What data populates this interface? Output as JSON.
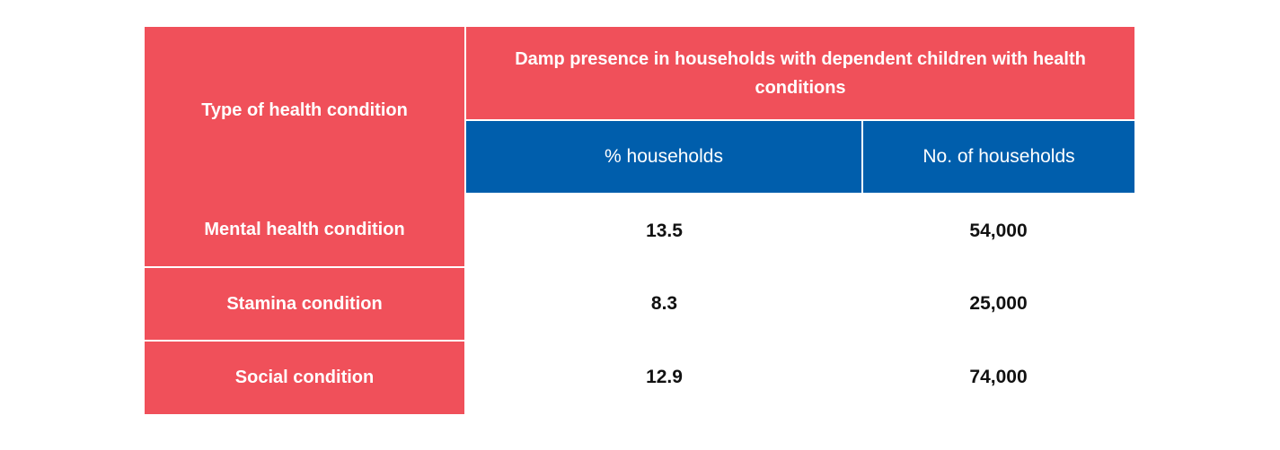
{
  "table": {
    "header": {
      "row_header_label": "Type of health condition",
      "group_title": "Damp presence in households with dependent children with health conditions",
      "columns": [
        "% households",
        "No. of households"
      ]
    },
    "rows": [
      {
        "label": "Mental health condition",
        "percent": "13.5",
        "count": "54,000"
      },
      {
        "label": "Stamina condition",
        "percent": "8.3",
        "count": "25,000"
      },
      {
        "label": "Social condition",
        "percent": "12.9",
        "count": "74,000"
      }
    ]
  },
  "colors": {
    "header_red": "#f0505a",
    "header_blue": "#005eac",
    "text_white": "#ffffff",
    "text_dark": "#111111"
  }
}
